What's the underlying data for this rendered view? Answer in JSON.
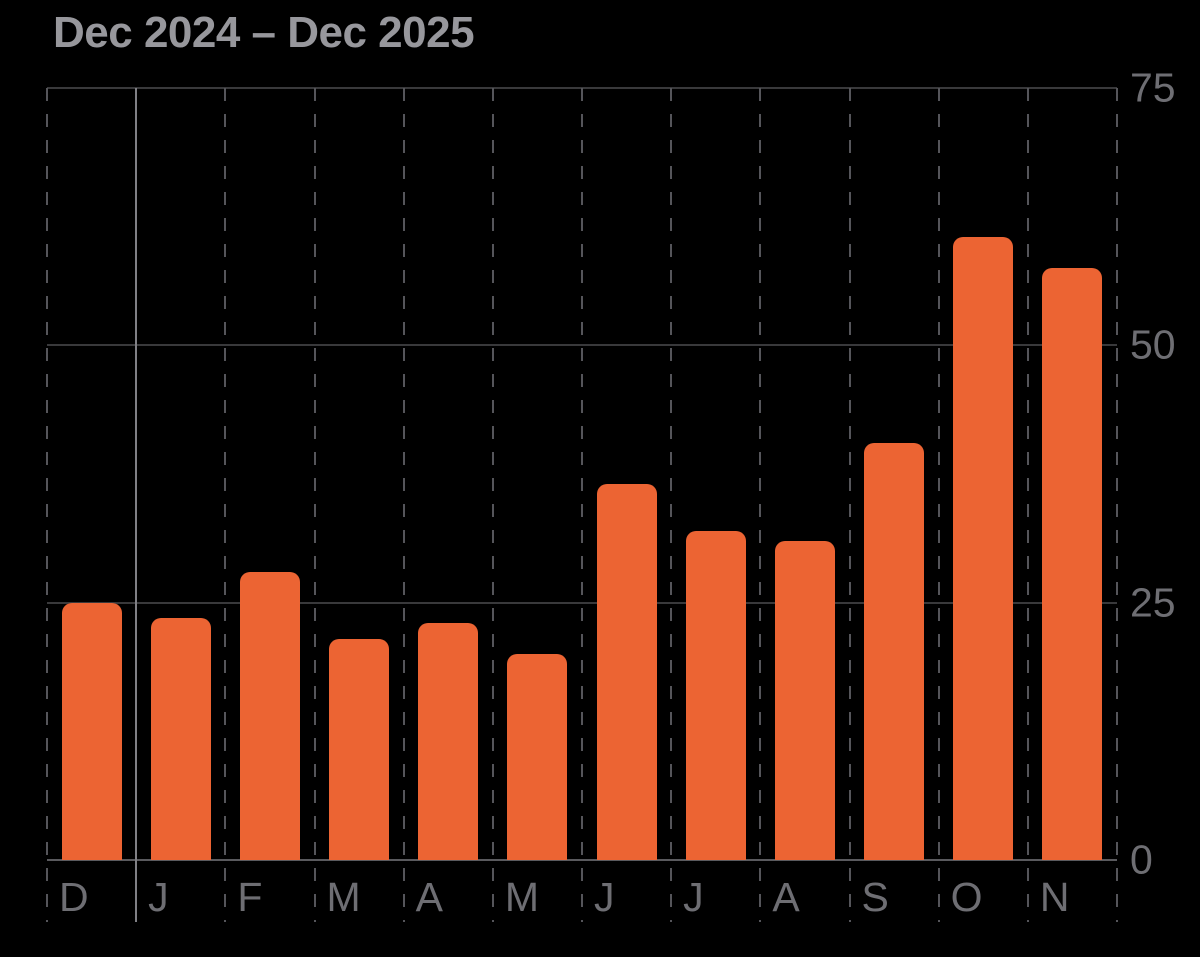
{
  "title": "Dec 2024 – Dec 2025",
  "colors": {
    "background": "#000000",
    "bar": "#EC6433",
    "title_text": "#97979C",
    "axis_label": "#6E6E73",
    "horizontal_gridline": "#39393B",
    "baseline": "#5A5A5E",
    "vertical_dashed_gridline": "#55555A",
    "year_divider": "#808085"
  },
  "chart_data": {
    "type": "bar",
    "title": "Dec 2024 – Dec 2025",
    "categories": [
      "D",
      "J",
      "F",
      "M",
      "A",
      "M",
      "J",
      "J",
      "A",
      "S",
      "O",
      "N"
    ],
    "values": [
      25,
      23.5,
      28,
      21.5,
      23,
      20,
      36.5,
      32,
      31,
      40.5,
      60.5,
      57.5
    ],
    "ylabel": "",
    "xlabel": "",
    "ylim": [
      0,
      75
    ],
    "yticks": [
      0,
      25,
      50,
      75
    ],
    "ytick_side": "right",
    "grid": true,
    "vertical_grid_style": "dashed",
    "year_divider_after_index": 0,
    "legend": "none"
  }
}
